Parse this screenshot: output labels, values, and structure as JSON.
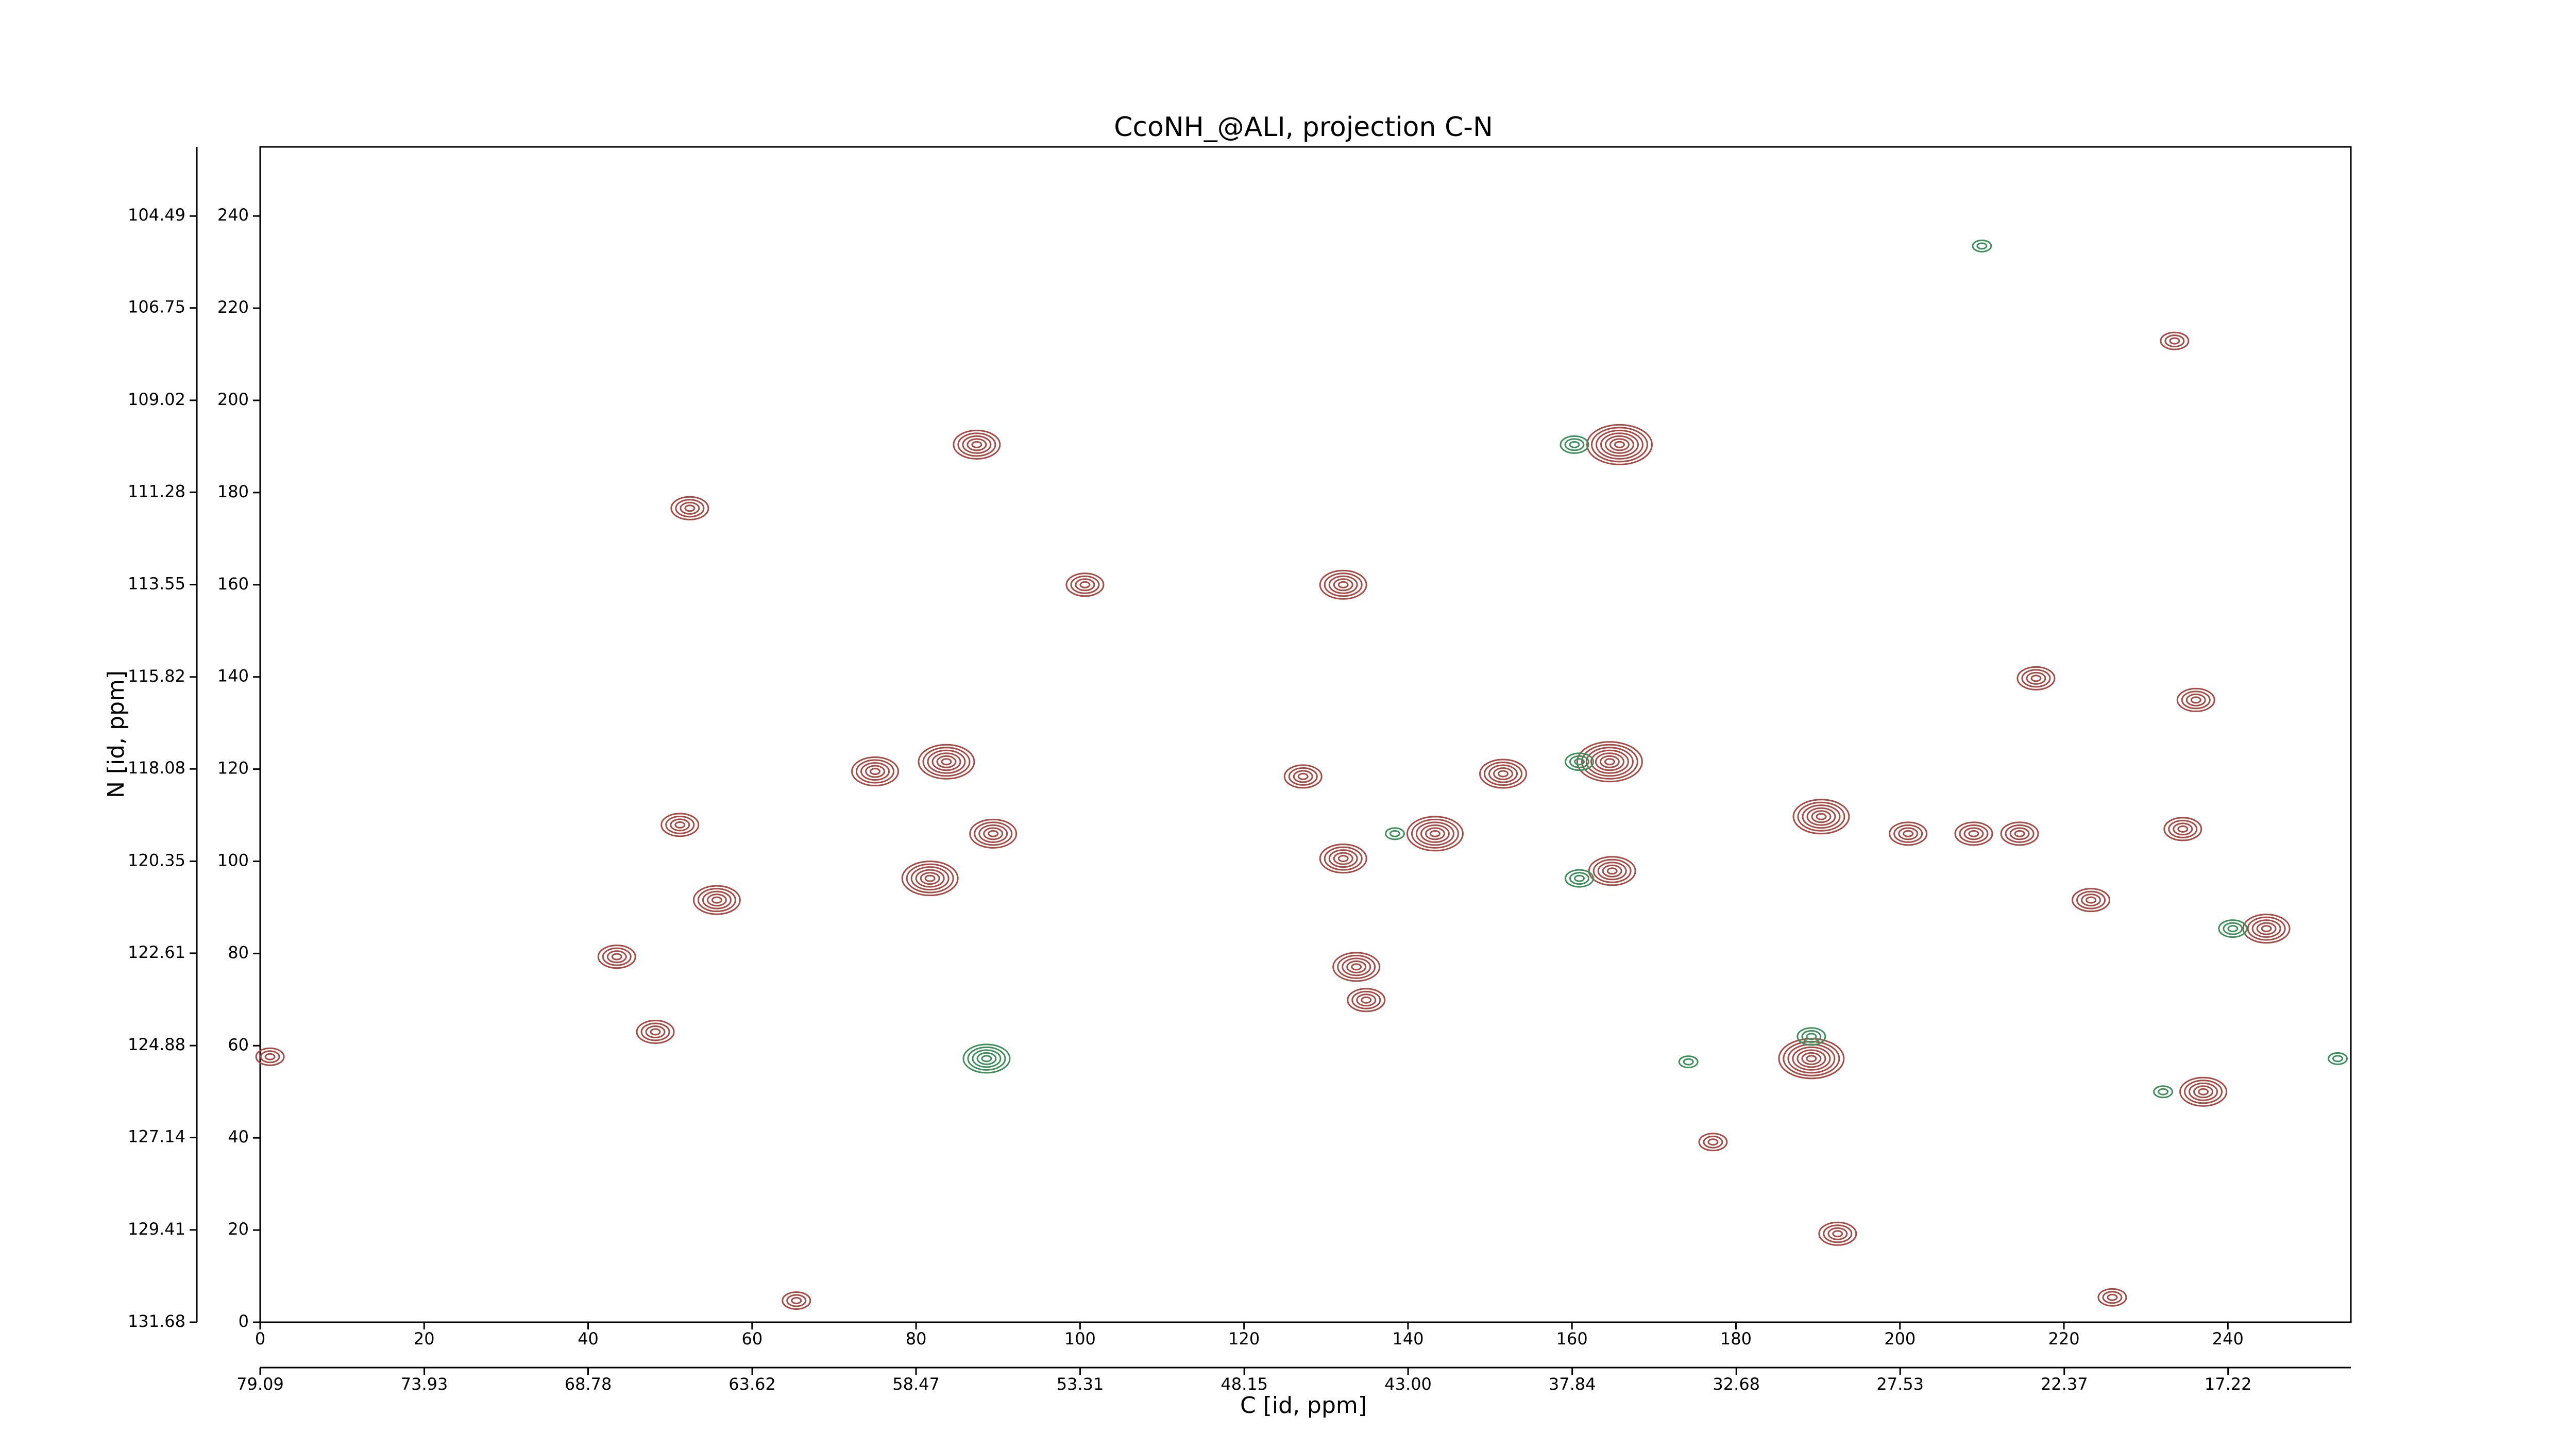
{
  "chart_data": {
    "type": "contour",
    "title": "CcoNH_@ALI, projection C-N",
    "xlabel": "C [id, ppm]",
    "ylabel": "N [id, ppm]",
    "xlim": [
      0,
      255
    ],
    "ylim": [
      0,
      255
    ],
    "xticks": [
      0,
      20,
      40,
      60,
      80,
      100,
      120,
      140,
      160,
      180,
      200,
      220,
      240
    ],
    "yticks": [
      0,
      20,
      40,
      60,
      80,
      100,
      120,
      140,
      160,
      180,
      200,
      220,
      240
    ],
    "x2lim": [
      79.09,
      13.36
    ],
    "x2ticks": [
      79.09,
      73.93,
      68.78,
      63.62,
      58.47,
      53.31,
      48.15,
      {
        "value": 43,
        "label": "43.00"
      },
      37.84,
      32.68,
      27.53,
      22.37,
      17.22
    ],
    "y2lim": [
      131.68,
      102.79
    ],
    "y2ticks": [
      131.68,
      129.41,
      127.14,
      124.88,
      122.61,
      120.35,
      118.08,
      115.82,
      113.55,
      111.28,
      109.02,
      106.75,
      104.49
    ],
    "series": [
      {
        "color": "#a64b45",
        "x": [
          87.4,
          165.8,
          52.4,
          132.1,
          100.6,
          83.7,
          164.6,
          151.6,
          143.3,
          81.7,
          89.4,
          55.7,
          132.1,
          190.4,
          201,
          209,
          214.6,
          234.5,
          244.7,
          223.3,
          133.7,
          134.9,
          189.2,
          237,
          48.2,
          43.5,
          164.9,
          51.2,
          75,
          127.2,
          216.6,
          236.1,
          233.5,
          65.4,
          225.9,
          192.4,
          177.2,
          1.2
        ],
        "y": [
          190.4,
          190.4,
          176.6,
          160,
          160,
          121.6,
          121.6,
          119,
          106,
          96.3,
          106,
          91.6,
          100.6,
          109.7,
          106,
          106,
          106,
          107,
          85.4,
          91.6,
          77.1,
          69.9,
          57.2,
          50,
          63,
          79.3,
          97.9,
          107.9,
          119.5,
          118.4,
          139.7,
          135,
          212.9,
          4.7,
          5.4,
          19.2,
          39.1,
          57.6
        ],
        "values": [
          5,
          7,
          4,
          5,
          4,
          6,
          7,
          5,
          6,
          6,
          5,
          5,
          5,
          6,
          4,
          4,
          4,
          4,
          5,
          4,
          5,
          4,
          7,
          5,
          4,
          4,
          5,
          4,
          5,
          4,
          4,
          4,
          3,
          3,
          3,
          4,
          3,
          3
        ]
      },
      {
        "color": "#3f8f5c",
        "x": [
          88.6,
          160.3,
          240.6,
          232.1,
          160.9,
          160.9,
          138.4,
          210,
          253.4,
          174.2,
          189.2
        ],
        "y": [
          57.2,
          190.4,
          85.4,
          50,
          96.3,
          121.6,
          106,
          233.5,
          57.2,
          56.5,
          62
        ],
        "values": [
          5,
          3,
          3,
          2,
          3,
          3,
          2,
          2,
          2,
          2,
          3
        ]
      }
    ]
  }
}
